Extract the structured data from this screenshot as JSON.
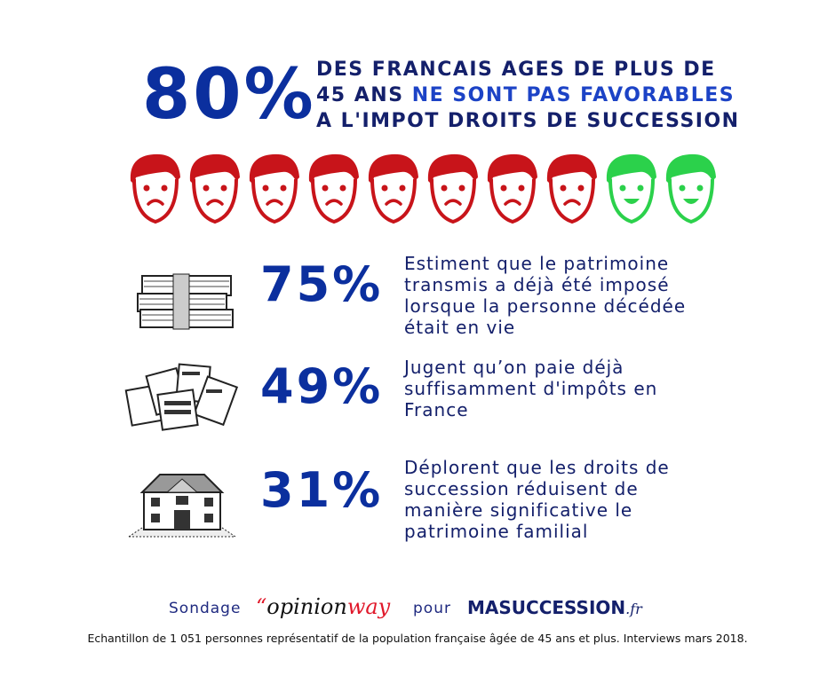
{
  "headline": {
    "percent": "80%",
    "line1": "DES FRANCAIS AGES DE PLUS DE",
    "line2_a": "45 ANS ",
    "line2_b": "NE SONT PAS FAVORABLES",
    "line3": "A L'IMPOT DROITS DE SUCCESSION"
  },
  "faces": {
    "total": 10,
    "unfavorable": 8,
    "colors": {
      "unfavorable": "#c8141a",
      "favorable": "#2bd14b"
    }
  },
  "stats": [
    {
      "icon": "money-stack-icon",
      "percent": "75%",
      "lines": [
        "Estiment que le patrimoine",
        "transmis a déjà été imposé",
        "lorsque la personne décédée",
        "était en vie"
      ]
    },
    {
      "icon": "tax-documents-icon",
      "percent": "49%",
      "lines": [
        "Jugent qu’on paie déjà",
        "suffisamment d'impôts en",
        "France"
      ]
    },
    {
      "icon": "house-icon",
      "percent": "31%",
      "lines": [
        "Déplorent que les droits de",
        "succession réduisent de",
        "manière significative le",
        "patrimoine familial"
      ]
    }
  ],
  "source": {
    "sondage": "Sondage",
    "pollster_quote": "“",
    "pollster_a": "opinion",
    "pollster_b": "way",
    "pour": "pour",
    "client_a": "MASUCCESSION",
    "client_b": ".fr"
  },
  "footnote": "Echantillon de 1 051 personnes représentatif de la population française âgée de 45 ans et plus. Interviews mars 2018.",
  "colors": {
    "navy": "#14206b",
    "blue": "#0b2f9e",
    "accent": "#1c43c6"
  }
}
